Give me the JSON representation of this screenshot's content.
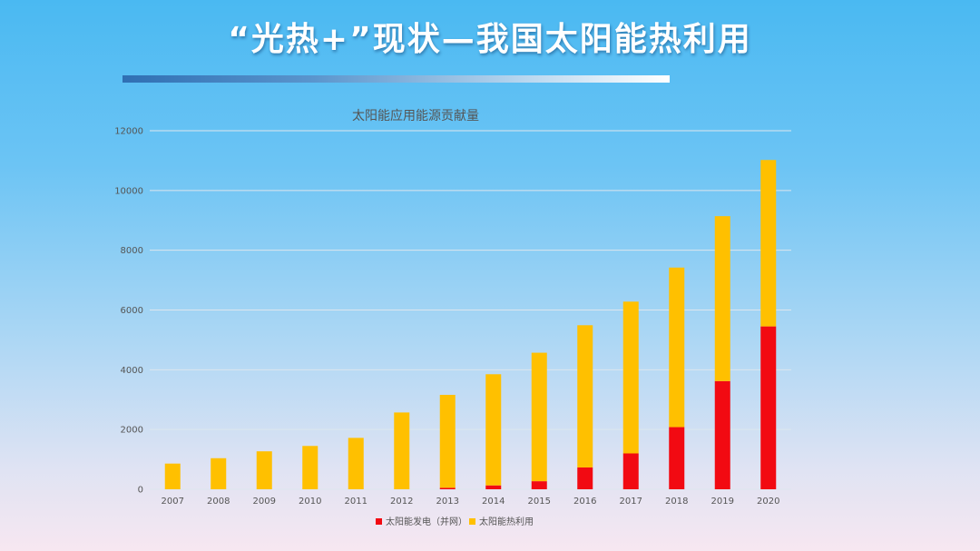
{
  "slide": {
    "title": "“光热+”现状—我国太阳能热利用"
  },
  "colors": {
    "series_power": "#f20a12",
    "series_thermal": "#ffc000",
    "gridline": "#dde6ee",
    "axis_text": "#555555"
  },
  "chart_data": {
    "type": "bar",
    "stacked": true,
    "title": "太阳能应用能源贡献量",
    "categories": [
      "2007",
      "2008",
      "2009",
      "2010",
      "2011",
      "2012",
      "2013",
      "2014",
      "2015",
      "2016",
      "2017",
      "2018",
      "2019",
      "2020"
    ],
    "series": [
      {
        "name": "太阳能发电（并网）",
        "values": [
          0,
          0,
          0,
          0,
          0,
          0,
          50,
          130,
          270,
          730,
          1200,
          2080,
          3620,
          5450
        ]
      },
      {
        "name": "太阳能热利用",
        "values": [
          860,
          1040,
          1270,
          1450,
          1720,
          2570,
          3110,
          3720,
          4300,
          4760,
          5080,
          5340,
          5520,
          5570
        ]
      }
    ],
    "ylim": [
      0,
      12000
    ],
    "yticks": [
      0,
      2000,
      4000,
      6000,
      8000,
      10000,
      12000
    ],
    "grid": true,
    "legend_position": "bottom"
  }
}
